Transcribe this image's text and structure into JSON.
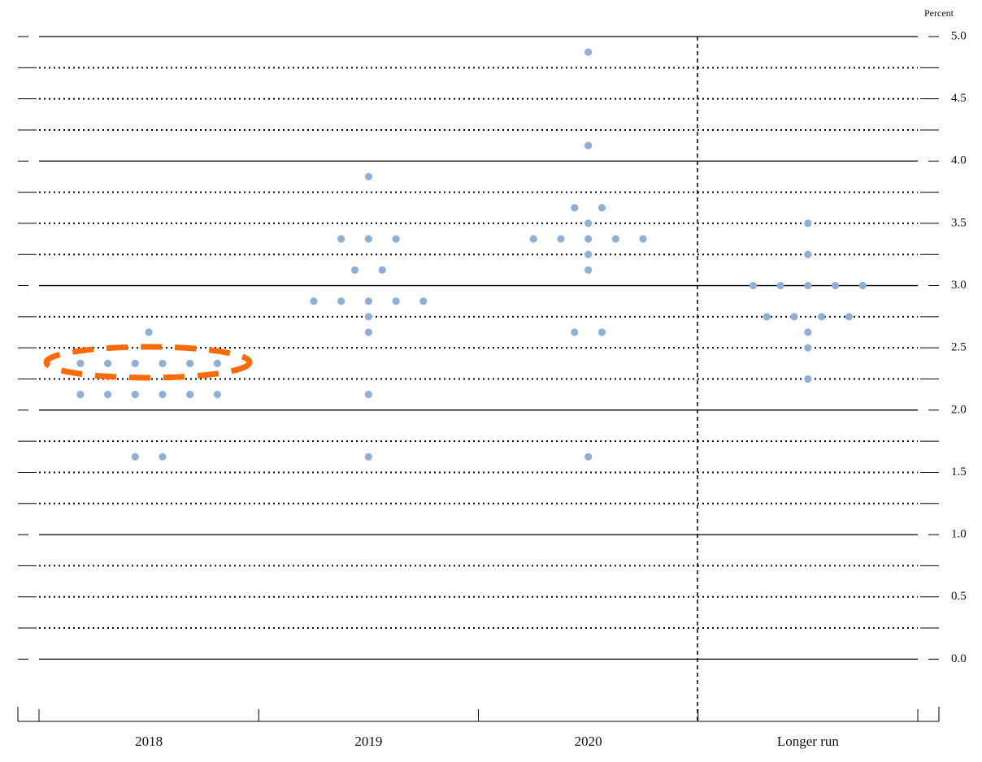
{
  "chart_data": {
    "type": "dot",
    "y_label": "Percent",
    "categories": [
      "2018",
      "2019",
      "2020",
      "Longer run"
    ],
    "dots": [
      [
        2.625,
        2.375,
        2.375,
        2.375,
        2.375,
        2.375,
        2.375,
        2.125,
        2.125,
        2.125,
        2.125,
        2.125,
        2.125,
        1.625,
        1.625
      ],
      [
        3.875,
        3.375,
        3.375,
        3.375,
        3.125,
        3.125,
        2.875,
        2.875,
        2.875,
        2.875,
        2.875,
        2.75,
        2.625,
        2.125,
        1.625
      ],
      [
        4.875,
        4.125,
        3.625,
        3.625,
        3.5,
        3.375,
        3.375,
        3.375,
        3.375,
        3.375,
        3.25,
        3.125,
        2.625,
        2.625,
        1.625
      ],
      [
        3.5,
        3.25,
        3.0,
        3.0,
        3.0,
        3.0,
        3.0,
        2.75,
        2.75,
        2.75,
        2.75,
        2.625,
        2.5,
        2.25
      ]
    ],
    "color": "#8fb0d3",
    "ylim": [
      -0.5,
      5.0
    ],
    "yticks": [
      {
        "value": 0,
        "label": "0.0"
      },
      0.5,
      {
        "value": 1,
        "label": "1.0"
      },
      1.5,
      {
        "value": 2,
        "label": "2.0"
      },
      2.5,
      {
        "value": 3,
        "label": "3.0"
      },
      3.5,
      {
        "value": 4,
        "label": "4.0"
      },
      4.5,
      {
        "value": 5,
        "label": "5.0"
      }
    ],
    "minor_yticks": [
      0.25,
      0.75,
      1.25,
      1.75,
      2.25,
      2.75,
      3.25,
      3.75,
      4.25,
      4.75
    ],
    "grid": true
  }
}
